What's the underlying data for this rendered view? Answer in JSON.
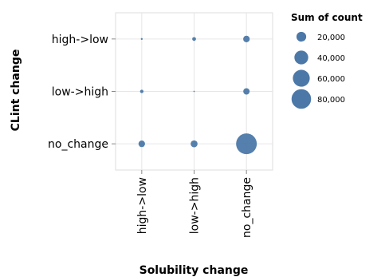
{
  "chart_data": {
    "type": "scatter",
    "subtype": "bubble-matrix",
    "xlabel": "Solubility change",
    "ylabel": "CLint change",
    "x_categories": [
      "high->low",
      "low->high",
      "no_change"
    ],
    "y_categories": [
      "high->low",
      "low->high",
      "no_change"
    ],
    "size_field": "Sum of count",
    "mark_color": "#4c78a8",
    "grid": true,
    "legend": {
      "title": "Sum of count",
      "placement": "top-right",
      "entries": [
        {
          "label": "20,000",
          "value": 20000
        },
        {
          "label": "40,000",
          "value": 40000
        },
        {
          "label": "60,000",
          "value": 60000
        },
        {
          "label": "80,000",
          "value": 80000
        }
      ]
    },
    "points": [
      {
        "x": "high->low",
        "y": "high->low",
        "value": 700
      },
      {
        "x": "low->high",
        "y": "high->low",
        "value": 3000
      },
      {
        "x": "no_change",
        "y": "high->low",
        "value": 9000
      },
      {
        "x": "high->low",
        "y": "low->high",
        "value": 2500
      },
      {
        "x": "low->high",
        "y": "low->high",
        "value": 400
      },
      {
        "x": "no_change",
        "y": "low->high",
        "value": 8500
      },
      {
        "x": "high->low",
        "y": "no_change",
        "value": 9000
      },
      {
        "x": "low->high",
        "y": "no_change",
        "value": 10000
      },
      {
        "x": "no_change",
        "y": "no_change",
        "value": 90000
      }
    ]
  }
}
